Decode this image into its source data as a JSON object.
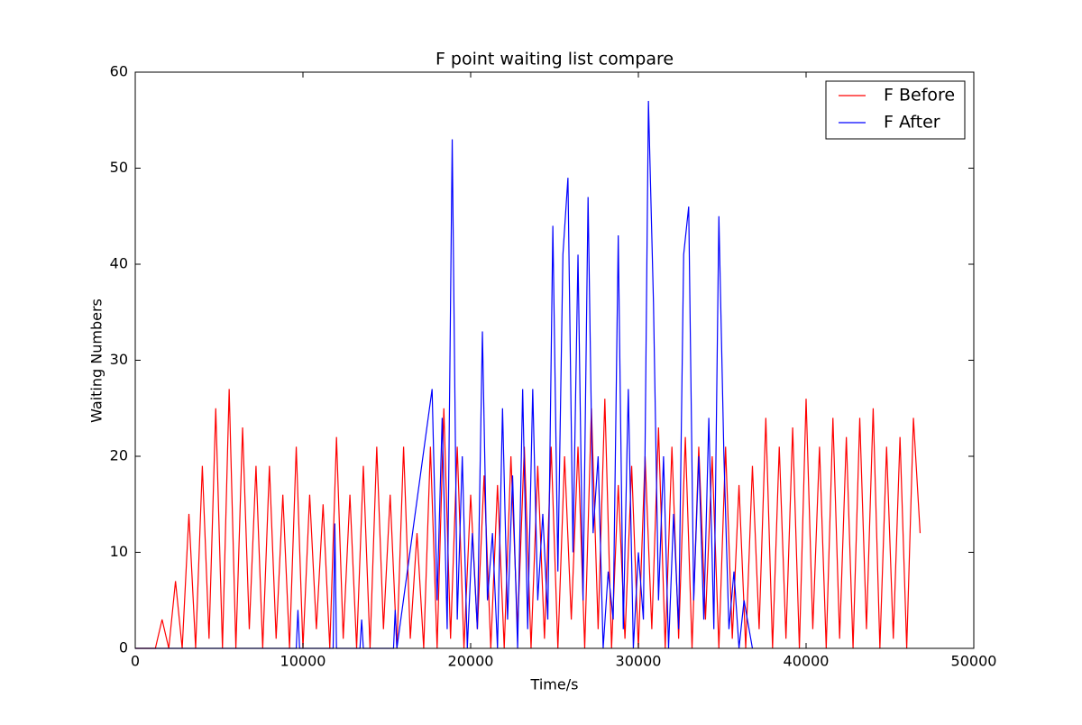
{
  "chart_data": {
    "type": "line",
    "title": "F point waiting list compare",
    "xlabel": "Time/s",
    "ylabel": "Waiting Numbers",
    "xlim": [
      0,
      50000
    ],
    "xticks": [
      0,
      10000,
      20000,
      30000,
      40000,
      50000
    ],
    "ylim": [
      0,
      60
    ],
    "yticks": [
      0,
      10,
      20,
      30,
      40,
      50,
      60
    ],
    "grid": false,
    "legend": "upper right",
    "series": [
      {
        "name": "F Before",
        "color": "#ff0000",
        "x": [
          0,
          1200,
          1600,
          2000,
          2400,
          2800,
          3200,
          3600,
          4000,
          4400,
          4800,
          5200,
          5600,
          6000,
          6400,
          6800,
          7200,
          7600,
          8000,
          8400,
          8800,
          9200,
          9600,
          10000,
          10400,
          10800,
          11200,
          11600,
          12000,
          12400,
          12800,
          13200,
          13600,
          14000,
          14400,
          14800,
          15200,
          15600,
          16000,
          16400,
          16800,
          17200,
          17600,
          18000,
          18400,
          18800,
          19200,
          19600,
          20000,
          20400,
          20800,
          21200,
          21600,
          22000,
          22400,
          22800,
          23200,
          23600,
          24000,
          24400,
          24800,
          25200,
          25600,
          26000,
          26400,
          26800,
          27200,
          27600,
          28000,
          28400,
          28800,
          29200,
          29600,
          30000,
          30400,
          30800,
          31200,
          31600,
          32000,
          32400,
          32800,
          33200,
          33600,
          34000,
          34400,
          34800,
          35200,
          35600,
          36000,
          36400,
          36800,
          37200,
          37600,
          38000,
          38400,
          38800,
          39200,
          39600,
          40000,
          40400,
          40800,
          41200,
          41600,
          42000,
          42400,
          42800,
          43200,
          43600,
          44000,
          44400,
          44800,
          45200,
          45600,
          46000,
          46400,
          46800
        ],
        "values": [
          0,
          0,
          3,
          0,
          7,
          0,
          14,
          0,
          19,
          1,
          25,
          0,
          27,
          0,
          23,
          2,
          19,
          0,
          19,
          1,
          16,
          0,
          21,
          0,
          16,
          2,
          15,
          0,
          22,
          1,
          16,
          0,
          19,
          0,
          21,
          2,
          16,
          0,
          21,
          1,
          12,
          0,
          21,
          0,
          25,
          1,
          21,
          0,
          16,
          2,
          18,
          0,
          17,
          0,
          20,
          2,
          21,
          0,
          19,
          1,
          21,
          0,
          20,
          3,
          21,
          0,
          25,
          2,
          26,
          0,
          17,
          1,
          19,
          0,
          20,
          2,
          23,
          0,
          21,
          1,
          22,
          0,
          21,
          3,
          20,
          0,
          21,
          1,
          17,
          0,
          19,
          2,
          24,
          0,
          21,
          1,
          23,
          0,
          26,
          2,
          21,
          0,
          24,
          1,
          22,
          0,
          24,
          2,
          25,
          0,
          21,
          1,
          22,
          0,
          24,
          12
        ]
      },
      {
        "name": "F After",
        "color": "#0000ff",
        "x": [
          0,
          9600,
          9700,
          9800,
          11800,
          11900,
          12000,
          13400,
          13500,
          13600,
          15400,
          15500,
          15600,
          17700,
          18000,
          18300,
          18600,
          18900,
          19200,
          19500,
          19800,
          20100,
          20400,
          20700,
          21000,
          21300,
          21600,
          21900,
          22200,
          22500,
          22800,
          23100,
          23400,
          23700,
          24000,
          24300,
          24600,
          24900,
          25200,
          25500,
          25800,
          26100,
          26400,
          26700,
          27000,
          27300,
          27600,
          27900,
          28200,
          28500,
          28800,
          29100,
          29400,
          29700,
          30000,
          30300,
          30600,
          30900,
          31200,
          31500,
          31800,
          32100,
          32400,
          32700,
          33000,
          33300,
          33600,
          33900,
          34200,
          34500,
          34800,
          35100,
          35400,
          35700,
          36000,
          36300,
          36800
        ],
        "values": [
          0,
          0,
          4,
          0,
          0,
          13,
          0,
          0,
          3,
          0,
          0,
          4,
          0,
          27,
          5,
          24,
          2,
          53,
          3,
          20,
          0,
          12,
          2,
          33,
          5,
          12,
          0,
          25,
          3,
          18,
          0,
          27,
          2,
          27,
          5,
          14,
          3,
          44,
          8,
          41,
          49,
          10,
          41,
          5,
          47,
          12,
          20,
          0,
          8,
          3,
          43,
          2,
          27,
          0,
          10,
          3,
          57,
          36,
          5,
          20,
          0,
          14,
          2,
          41,
          46,
          5,
          20,
          3,
          24,
          2,
          45,
          20,
          2,
          8,
          0,
          5,
          0
        ]
      }
    ]
  }
}
